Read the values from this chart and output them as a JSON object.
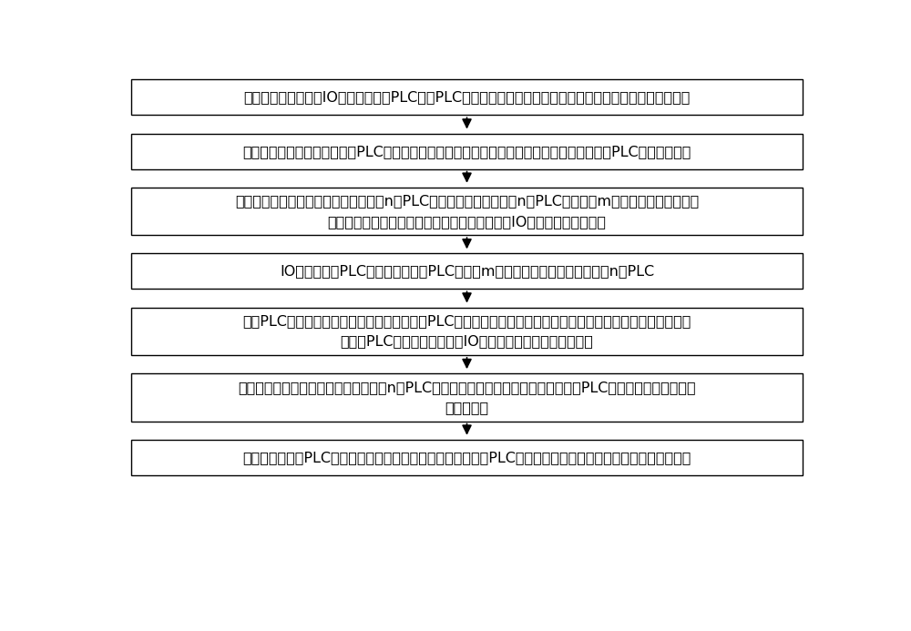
{
  "background_color": "#ffffff",
  "box_fill_color": "#ffffff",
  "box_edge_color": "#000000",
  "arrow_color": "#000000",
  "text_color": "#000000",
  "font_size": 11.5,
  "boxes": [
    {
      "lines": [
        "搭建由测试控制台、IO管理器、测试PLC组、PLC远程控制网关、远程工程师站和串口切换器组成的测试平台"
      ]
    },
    {
      "lines": [
        "工程师通过远程工程师站编程PLC测试用例和设定运行参数，并将测试用例和运行参数发送至PLC远程控制网关"
      ]
    },
    {
      "lines": [
        "测试控制台根据测试需要选择需启动的n个PLC编号，并对应选择要在n个PLC上运行的m个测试用例编号，输入",
        "串口通信通道参数，然后将上述配置分别发送至IO管理器和串口切换器"
      ]
    },
    {
      "lines": [
        "IO管理器根据PLC编号，启动相应PLC，并将m个测试用例编号发送至对应的n个PLC"
      ]
    },
    {
      "lines": [
        "每个PLC根据各自的测试用例编号，分别调用PLC远程控制网关中对应的测试用例运行，输出测试用例的结果，",
        "同时将PLC的运行情况反馈至IO管理器，供测试控制平台调用"
      ]
    },
    {
      "lines": [
        "串口切换器根据串口通信通道参数，为n个PLC分别一一配置各自的串口通道，实现各PLC与所连接的被测试用例",
        "之间的通信"
      ]
    },
    {
      "lines": [
        "测试控制台对各PLC的状态进行实时监控，根据测试需求，对PLC编号、运行参数和测试用例编号进行实时修改"
      ]
    }
  ]
}
